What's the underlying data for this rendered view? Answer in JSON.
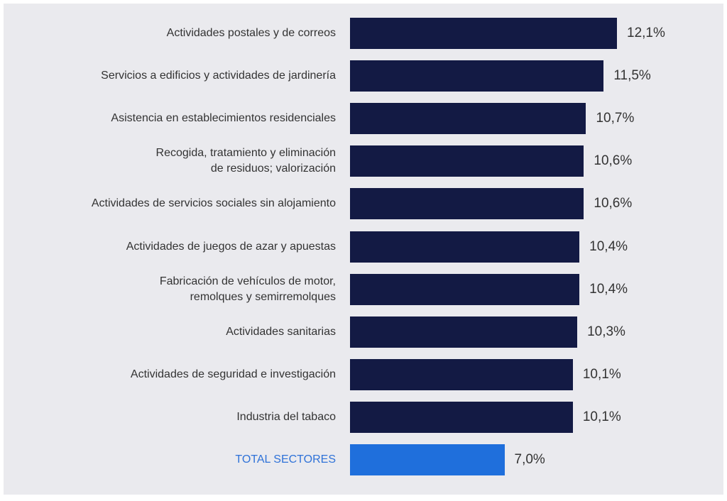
{
  "chart_data": {
    "type": "bar",
    "orientation": "horizontal",
    "categories": [
      "Actividades postales y de correos",
      "Servicios a edificios y actividades de jardinería",
      "Asistencia en establecimientos residenciales",
      "Recogida, tratamiento y eliminación\nde residuos; valorización",
      "Actividades de servicios sociales sin alojamiento",
      "Actividades de juegos de azar y apuestas",
      "Fabricación de vehículos de motor,\nremolques y semirremolques",
      "Actividades sanitarias",
      "Actividades de seguridad e investigación",
      "Industria del tabaco",
      "TOTAL SECTORES"
    ],
    "values": [
      12.1,
      11.5,
      10.7,
      10.6,
      10.6,
      10.4,
      10.4,
      10.3,
      10.1,
      10.1,
      7.0
    ],
    "value_labels": [
      "12,1%",
      "11,5%",
      "10,7%",
      "10,6%",
      "10,6%",
      "10,4%",
      "10,4%",
      "10,3%",
      "10,1%",
      "10,1%",
      "7,0%"
    ],
    "colors": [
      "#131a44",
      "#131a44",
      "#131a44",
      "#131a44",
      "#131a44",
      "#131a44",
      "#131a44",
      "#131a44",
      "#131a44",
      "#131a44",
      "#1f6fdc"
    ],
    "label_colors": [
      "#333333",
      "#333333",
      "#333333",
      "#333333",
      "#333333",
      "#333333",
      "#333333",
      "#333333",
      "#333333",
      "#333333",
      "#2f72d8"
    ]
  }
}
